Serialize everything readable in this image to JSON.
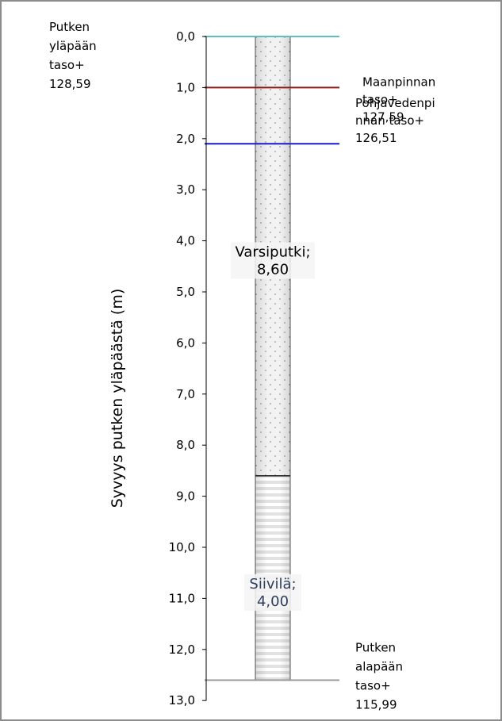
{
  "chart_data": {
    "type": "well-log",
    "ylabel": "Syvyys putken yläpäästä (m)",
    "y_range": [
      0,
      13
    ],
    "y_tick_step": 1,
    "y_ticks": [
      "0,0",
      "1,0",
      "2,0",
      "3,0",
      "4,0",
      "5,0",
      "6,0",
      "7,0",
      "8,0",
      "9,0",
      "10,0",
      "11,0",
      "12,0",
      "13,0"
    ],
    "segments": [
      {
        "name": "Varsiputki",
        "from": 0.0,
        "to": 8.6,
        "label_lines": [
          "Varsiputki;",
          "8,60"
        ],
        "label_color": "#000000"
      },
      {
        "name": "Siivilä",
        "from": 8.6,
        "to": 12.6,
        "label_lines": [
          "Siivilä;",
          "4,00"
        ],
        "label_color": "#2e3e5e"
      }
    ],
    "levels": [
      {
        "depth": 0.0,
        "color": "#5fbfbf",
        "label_lines": [
          "Putken",
          "yläpään",
          "taso+",
          "128,59"
        ],
        "label_side": "left"
      },
      {
        "depth": 1.0,
        "color": "#8b1a1a",
        "label_lines": [
          "Maanpinnan",
          "taso+",
          "127,59"
        ],
        "label_side": "right"
      },
      {
        "depth": 2.1,
        "color": "#1a1acc",
        "label_lines": [
          "Pohjavedenpi",
          "nnan taso+",
          "126,51"
        ],
        "label_side": "right"
      },
      {
        "depth": 12.6,
        "color": "#9a9a9a",
        "label_lines": [
          "Putken",
          "alapään",
          "taso+",
          "115,99"
        ],
        "label_side": "right"
      }
    ]
  }
}
